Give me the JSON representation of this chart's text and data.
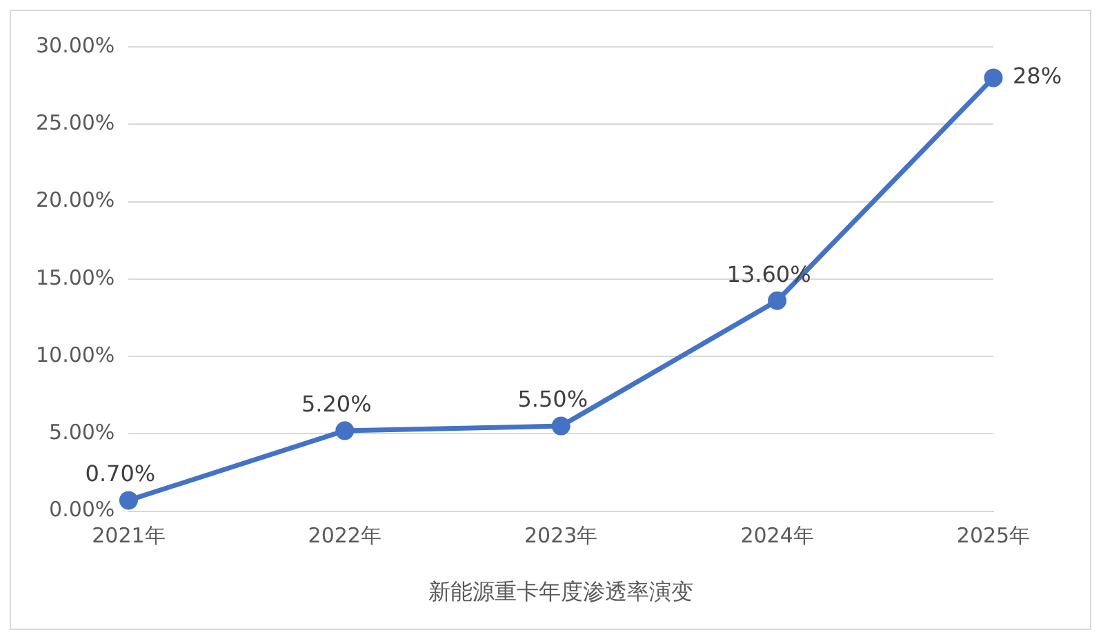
{
  "chart_data": {
    "type": "line",
    "xlabel": "新能源重卡年度渗透率演变",
    "categories": [
      "2021年",
      "2022年",
      "2023年",
      "2024年",
      "2025年"
    ],
    "series": [
      {
        "color": "#4472c4",
        "values": [
          0.7,
          5.2,
          5.5,
          13.6,
          28
        ],
        "value_labels": [
          "0.70%",
          "5.20%",
          "5.50%",
          "13.60%",
          "28%"
        ]
      }
    ],
    "ylim": [
      0,
      30
    ],
    "yticks": [
      {
        "value": 0,
        "label": "0.00%"
      },
      {
        "value": 5,
        "label": "5.00%"
      },
      {
        "value": 10,
        "label": "10.00%"
      },
      {
        "value": 15,
        "label": "15.00%"
      },
      {
        "value": 20,
        "label": "20.00%"
      },
      {
        "value": 25,
        "label": "25.00%"
      },
      {
        "value": 30,
        "label": "30.00%"
      }
    ],
    "grid": "y",
    "legend": false,
    "marker": "circle",
    "line_style": "solid"
  }
}
